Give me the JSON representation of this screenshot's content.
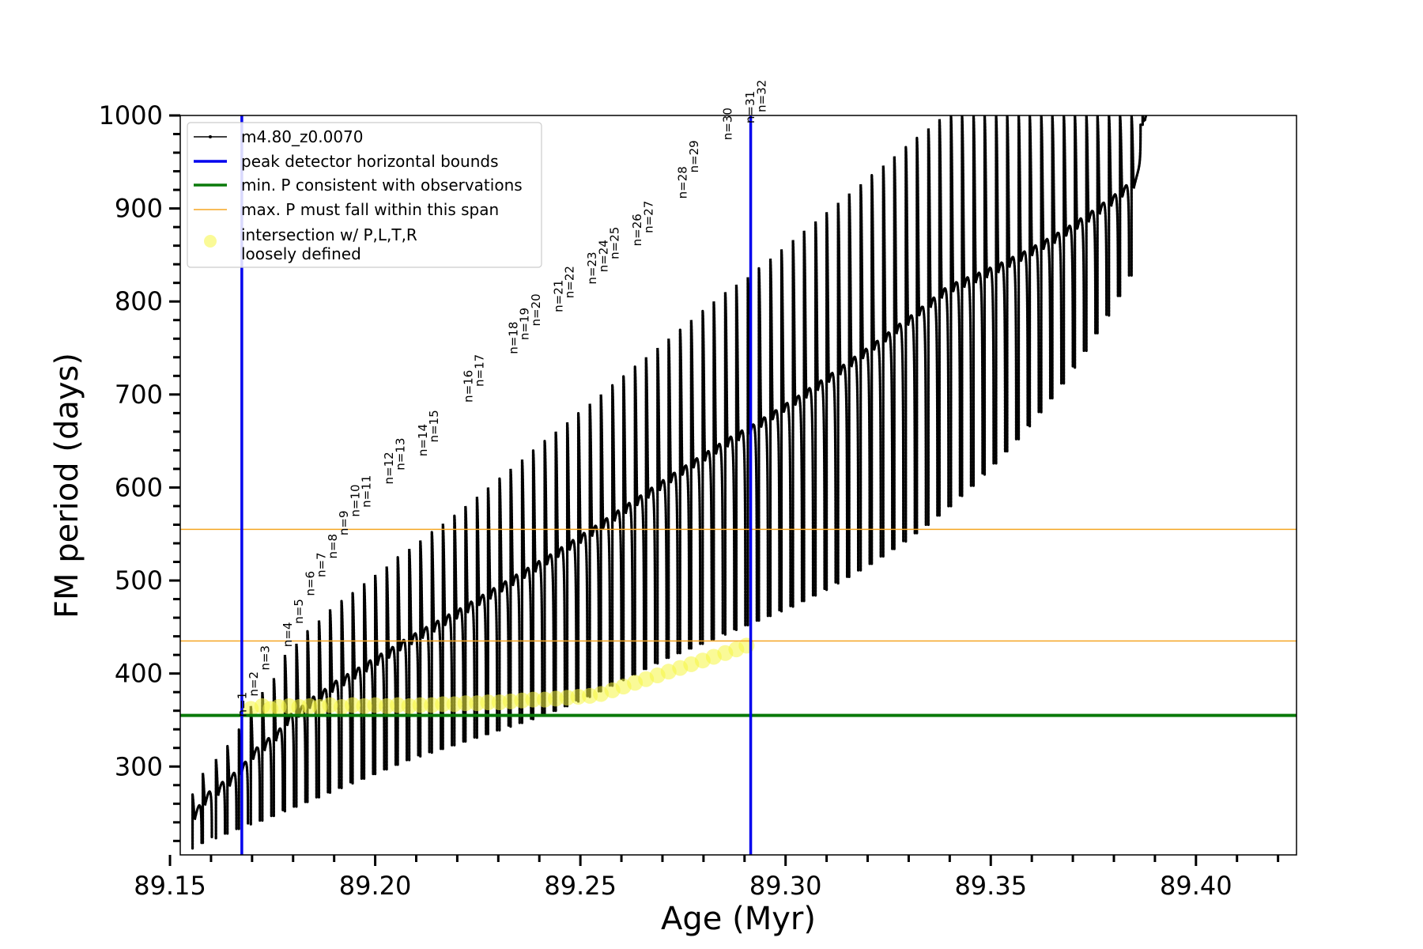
{
  "chart_data": {
    "type": "line",
    "xlabel": "Age (Myr)",
    "ylabel": "FM period (days)",
    "xlim": [
      89.1525,
      89.4245
    ],
    "ylim": [
      205,
      1000
    ],
    "x_ticks": [
      {
        "value": 89.15,
        "label": "89.15"
      },
      {
        "value": 89.2,
        "label": "89.20"
      },
      {
        "value": 89.25,
        "label": "89.25"
      },
      {
        "value": 89.3,
        "label": "89.30"
      },
      {
        "value": 89.35,
        "label": "89.35"
      },
      {
        "value": 89.4,
        "label": "89.40"
      }
    ],
    "x_minor_step": 0.01,
    "y_ticks": [
      {
        "value": 300,
        "label": "300"
      },
      {
        "value": 400,
        "label": "400"
      },
      {
        "value": 500,
        "label": "500"
      },
      {
        "value": 600,
        "label": "600"
      },
      {
        "value": 700,
        "label": "700"
      },
      {
        "value": 800,
        "label": "800"
      },
      {
        "value": 900,
        "label": "900"
      },
      {
        "value": 1000,
        "label": "1000"
      }
    ],
    "y_minor_step": 20,
    "grid": false,
    "legend_position": "top-left",
    "legend": [
      {
        "label": "m4.80_z0.0070",
        "style": "line-dot",
        "color": "#000000"
      },
      {
        "label": "peak detector horizontal bounds",
        "style": "line",
        "color": "#0000ee"
      },
      {
        "label": "min. P consistent with observations",
        "style": "line",
        "color": "#0a7a0a"
      },
      {
        "label": "max. P must fall within this span",
        "style": "thin-line",
        "color": "#f5a623"
      },
      {
        "label": "intersection w/ P,L,T,R",
        "label2": "loosely defined",
        "style": "circle",
        "color": "#f5f542"
      }
    ],
    "vertical_lines": {
      "name": "peak detector horizontal bounds",
      "x": [
        89.1675,
        89.2915
      ],
      "color": "#0000ee"
    },
    "min_period_line": {
      "name": "min. P consistent with observations",
      "y": 355,
      "color": "#0a7a0a"
    },
    "max_period_span": {
      "name": "max. P must fall within this span",
      "y": [
        435,
        555
      ],
      "color": "#f5a623"
    },
    "track": {
      "name": "m4.80_z0.0070",
      "color": "#000000",
      "pulses": [
        {
          "x": 89.1555,
          "min": 212,
          "peak": 270
        },
        {
          "x": 89.158,
          "min": 218,
          "peak": 293
        },
        {
          "x": 89.1612,
          "min": 223,
          "peak": 308
        },
        {
          "x": 89.164,
          "min": 228,
          "peak": 322
        },
        {
          "x": 89.1668,
          "min": 233,
          "peak": 340
        },
        {
          "x": 89.1697,
          "min": 238,
          "peak": 365
        },
        {
          "x": 89.1725,
          "min": 242,
          "peak": 380
        },
        {
          "x": 89.1753,
          "min": 247,
          "peak": 395
        },
        {
          "x": 89.178,
          "min": 252,
          "peak": 420
        },
        {
          "x": 89.1808,
          "min": 257,
          "peak": 432
        },
        {
          "x": 89.1835,
          "min": 262,
          "peak": 446
        },
        {
          "x": 89.1863,
          "min": 267,
          "peak": 457
        },
        {
          "x": 89.189,
          "min": 272,
          "peak": 469
        },
        {
          "x": 89.1918,
          "min": 277,
          "peak": 478
        },
        {
          "x": 89.1945,
          "min": 282,
          "peak": 487
        },
        {
          "x": 89.1973,
          "min": 287,
          "peak": 497
        },
        {
          "x": 89.2,
          "min": 292,
          "peak": 506
        },
        {
          "x": 89.2028,
          "min": 297,
          "peak": 515
        },
        {
          "x": 89.2055,
          "min": 302,
          "peak": 525
        },
        {
          "x": 89.2083,
          "min": 307,
          "peak": 534
        },
        {
          "x": 89.211,
          "min": 311,
          "peak": 543
        },
        {
          "x": 89.2138,
          "min": 315,
          "peak": 552
        },
        {
          "x": 89.2165,
          "min": 319,
          "peak": 561
        },
        {
          "x": 89.2193,
          "min": 323,
          "peak": 570
        },
        {
          "x": 89.222,
          "min": 327,
          "peak": 580
        },
        {
          "x": 89.2248,
          "min": 331,
          "peak": 590
        },
        {
          "x": 89.2275,
          "min": 335,
          "peak": 600
        },
        {
          "x": 89.2303,
          "min": 339,
          "peak": 610
        },
        {
          "x": 89.233,
          "min": 343,
          "peak": 620
        },
        {
          "x": 89.2358,
          "min": 347,
          "peak": 630
        },
        {
          "x": 89.2385,
          "min": 351,
          "peak": 640
        },
        {
          "x": 89.2413,
          "min": 355,
          "peak": 650
        },
        {
          "x": 89.244,
          "min": 360,
          "peak": 660
        },
        {
          "x": 89.2468,
          "min": 365,
          "peak": 670
        },
        {
          "x": 89.2495,
          "min": 370,
          "peak": 680
        },
        {
          "x": 89.2523,
          "min": 375,
          "peak": 690
        },
        {
          "x": 89.255,
          "min": 381,
          "peak": 700
        },
        {
          "x": 89.2578,
          "min": 387,
          "peak": 710
        },
        {
          "x": 89.2605,
          "min": 393,
          "peak": 720
        },
        {
          "x": 89.2633,
          "min": 399,
          "peak": 730
        },
        {
          "x": 89.266,
          "min": 405,
          "peak": 740
        },
        {
          "x": 89.2688,
          "min": 411,
          "peak": 750
        },
        {
          "x": 89.2715,
          "min": 417,
          "peak": 760
        },
        {
          "x": 89.2743,
          "min": 422,
          "peak": 770
        },
        {
          "x": 89.277,
          "min": 427,
          "peak": 780
        },
        {
          "x": 89.2798,
          "min": 432,
          "peak": 790
        },
        {
          "x": 89.2825,
          "min": 437,
          "peak": 800
        },
        {
          "x": 89.2853,
          "min": 442,
          "peak": 810
        },
        {
          "x": 89.288,
          "min": 447,
          "peak": 818
        },
        {
          "x": 89.2908,
          "min": 452,
          "peak": 826
        },
        {
          "x": 89.2935,
          "min": 457,
          "peak": 836
        },
        {
          "x": 89.2963,
          "min": 462,
          "peak": 846
        },
        {
          "x": 89.299,
          "min": 467,
          "peak": 856
        },
        {
          "x": 89.3018,
          "min": 472,
          "peak": 866
        },
        {
          "x": 89.3045,
          "min": 478,
          "peak": 876
        },
        {
          "x": 89.3073,
          "min": 484,
          "peak": 886
        },
        {
          "x": 89.31,
          "min": 490,
          "peak": 896
        },
        {
          "x": 89.3128,
          "min": 497,
          "peak": 906
        },
        {
          "x": 89.3155,
          "min": 504,
          "peak": 916
        },
        {
          "x": 89.3183,
          "min": 511,
          "peak": 926
        },
        {
          "x": 89.321,
          "min": 518,
          "peak": 936
        },
        {
          "x": 89.3238,
          "min": 526,
          "peak": 946
        },
        {
          "x": 89.3265,
          "min": 534,
          "peak": 956
        },
        {
          "x": 89.3293,
          "min": 542,
          "peak": 966
        },
        {
          "x": 89.332,
          "min": 551,
          "peak": 976
        },
        {
          "x": 89.3348,
          "min": 560,
          "peak": 986
        },
        {
          "x": 89.3375,
          "min": 570,
          "peak": 996
        },
        {
          "x": 89.3403,
          "min": 580,
          "peak": 1000
        },
        {
          "x": 89.343,
          "min": 591,
          "peak": 1000
        },
        {
          "x": 89.3458,
          "min": 602,
          "peak": 1000
        },
        {
          "x": 89.3485,
          "min": 614,
          "peak": 1000
        },
        {
          "x": 89.3513,
          "min": 626,
          "peak": 1000
        },
        {
          "x": 89.354,
          "min": 639,
          "peak": 1000
        },
        {
          "x": 89.3568,
          "min": 652,
          "peak": 1000
        },
        {
          "x": 89.3595,
          "min": 666,
          "peak": 1000
        },
        {
          "x": 89.3623,
          "min": 681,
          "peak": 1000
        },
        {
          "x": 89.365,
          "min": 696,
          "peak": 1000
        },
        {
          "x": 89.3678,
          "min": 712,
          "peak": 1000
        },
        {
          "x": 89.3705,
          "min": 729,
          "peak": 1000
        },
        {
          "x": 89.3733,
          "min": 747,
          "peak": 1000
        },
        {
          "x": 89.376,
          "min": 766,
          "peak": 1000
        },
        {
          "x": 89.3788,
          "min": 785,
          "peak": 1000
        },
        {
          "x": 89.3815,
          "min": 806,
          "peak": 1000
        },
        {
          "x": 89.3843,
          "min": 828,
          "peak": 1000
        },
        {
          "x": 89.387,
          "min": 990,
          "peak": 1000
        }
      ]
    },
    "flash_peaks": [
      {
        "label": "n=1",
        "x": 89.1697,
        "y": 350
      },
      {
        "label": "n=2",
        "x": 89.1725,
        "y": 372
      },
      {
        "label": "n=3",
        "x": 89.1753,
        "y": 400
      },
      {
        "label": "n=4",
        "x": 89.1808,
        "y": 425
      },
      {
        "label": "n=5",
        "x": 89.1835,
        "y": 450
      },
      {
        "label": "n=6",
        "x": 89.1863,
        "y": 480
      },
      {
        "label": "n=7",
        "x": 89.189,
        "y": 500
      },
      {
        "label": "n=8",
        "x": 89.1918,
        "y": 520
      },
      {
        "label": "n=9",
        "x": 89.1945,
        "y": 545
      },
      {
        "label": "n=10",
        "x": 89.1973,
        "y": 565
      },
      {
        "label": "n=11",
        "x": 89.2,
        "y": 575
      },
      {
        "label": "n=12",
        "x": 89.2055,
        "y": 600
      },
      {
        "label": "n=13",
        "x": 89.2083,
        "y": 615
      },
      {
        "label": "n=14",
        "x": 89.2138,
        "y": 630
      },
      {
        "label": "n=15",
        "x": 89.2165,
        "y": 645
      },
      {
        "label": "n=16",
        "x": 89.2248,
        "y": 688
      },
      {
        "label": "n=17",
        "x": 89.2275,
        "y": 705
      },
      {
        "label": "n=18",
        "x": 89.2358,
        "y": 740
      },
      {
        "label": "n=19",
        "x": 89.2385,
        "y": 755
      },
      {
        "label": "n=20",
        "x": 89.2413,
        "y": 770
      },
      {
        "label": "n=21",
        "x": 89.2468,
        "y": 785
      },
      {
        "label": "n=22",
        "x": 89.2495,
        "y": 800
      },
      {
        "label": "n=23",
        "x": 89.255,
        "y": 815
      },
      {
        "label": "n=24",
        "x": 89.2578,
        "y": 828
      },
      {
        "label": "n=25",
        "x": 89.2605,
        "y": 842
      },
      {
        "label": "n=26",
        "x": 89.266,
        "y": 856
      },
      {
        "label": "n=27",
        "x": 89.2688,
        "y": 870
      },
      {
        "label": "n=28",
        "x": 89.277,
        "y": 907
      },
      {
        "label": "n=29",
        "x": 89.2798,
        "y": 935
      },
      {
        "label": "n=30",
        "x": 89.288,
        "y": 970
      },
      {
        "label": "n=31",
        "x": 89.2935,
        "y": 988
      },
      {
        "label": "n=32",
        "x": 89.2963,
        "y": 1000
      }
    ],
    "intersections": {
      "name": "intersection w/ P,L,T,R loosely defined",
      "color": "#f5f542",
      "points": [
        [
          89.1697,
          362
        ],
        [
          89.1725,
          365
        ],
        [
          89.1745,
          362
        ],
        [
          89.1765,
          364
        ],
        [
          89.179,
          365
        ],
        [
          89.1815,
          364
        ],
        [
          89.184,
          365
        ],
        [
          89.1865,
          364
        ],
        [
          89.189,
          366
        ],
        [
          89.1918,
          364
        ],
        [
          89.1945,
          366
        ],
        [
          89.1973,
          365
        ],
        [
          89.2,
          366
        ],
        [
          89.2028,
          365
        ],
        [
          89.2055,
          366
        ],
        [
          89.2083,
          365
        ],
        [
          89.211,
          366
        ],
        [
          89.2138,
          366
        ],
        [
          89.2165,
          367
        ],
        [
          89.2193,
          367
        ],
        [
          89.222,
          368
        ],
        [
          89.2248,
          368
        ],
        [
          89.2275,
          369
        ],
        [
          89.2303,
          369
        ],
        [
          89.233,
          370
        ],
        [
          89.2358,
          371
        ],
        [
          89.2385,
          372
        ],
        [
          89.2413,
          372
        ],
        [
          89.244,
          373
        ],
        [
          89.2468,
          374
        ],
        [
          89.2495,
          375
        ],
        [
          89.2523,
          376
        ],
        [
          89.255,
          378
        ],
        [
          89.2578,
          382
        ],
        [
          89.2605,
          386
        ],
        [
          89.2633,
          390
        ],
        [
          89.266,
          394
        ],
        [
          89.2688,
          398
        ],
        [
          89.2715,
          402
        ],
        [
          89.2743,
          406
        ],
        [
          89.277,
          410
        ],
        [
          89.2798,
          414
        ],
        [
          89.2825,
          418
        ],
        [
          89.2853,
          422
        ],
        [
          89.288,
          426
        ],
        [
          89.2905,
          430
        ]
      ]
    }
  }
}
